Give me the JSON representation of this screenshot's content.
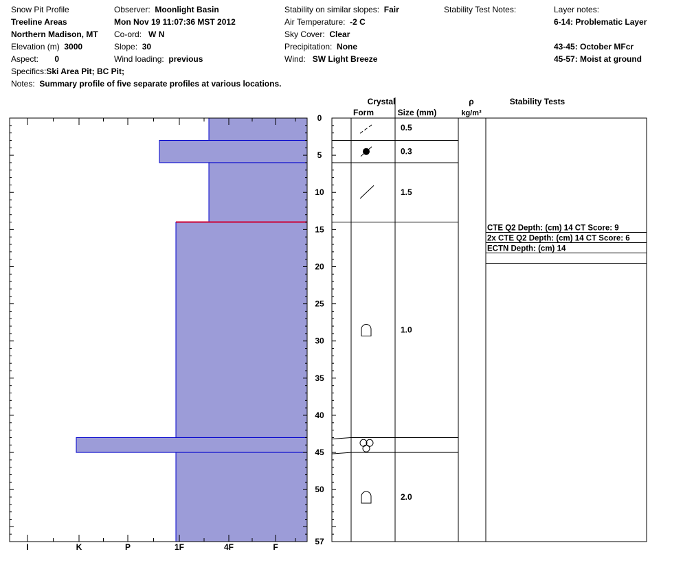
{
  "header": {
    "profile_title": "Snow Pit Profile",
    "location_name": "Treeline Areas",
    "region": "Northern Madison, MT",
    "elevation_label": "Elevation (m)",
    "elevation_value": "3000",
    "aspect_label": "Aspect:",
    "aspect_value": "0",
    "specifics_label": "Specifics:",
    "specifics_value": "Ski Area Pit; BC Pit;",
    "notes_label": "Notes:",
    "notes_value": "Summary profile of five separate profiles at various locations.",
    "observer_label": "Observer:",
    "observer_value": "Moonlight Basin",
    "datetime": "Mon Nov 19 11:07:36 MST 2012",
    "coord_label": "Co-ord:",
    "coord_value": "W  N",
    "slope_label": "Slope:",
    "slope_value": "30",
    "wind_loading_label": "Wind loading:",
    "wind_loading_value": "previous",
    "stability_label": "Stability on similar slopes:",
    "stability_value": "Fair",
    "air_temp_label": "Air Temperature:",
    "air_temp_value": "-2 C",
    "sky_label": "Sky Cover:",
    "sky_value": "Clear",
    "precip_label": "Precipitation:",
    "precip_value": "None",
    "wind_label": "Wind:",
    "wind_value": "SW Light Breeze",
    "stability_notes_label": "Stability Test Notes:",
    "layer_notes_label": "Layer notes:",
    "layer_notes": [
      "6-14: Problematic Layer",
      "43-45: October MFcr",
      "45-57: Moist at ground"
    ]
  },
  "columns": {
    "crystal": "Crystal",
    "form": "Form",
    "size": "Size (mm)",
    "rho": "ρ",
    "density_unit": "kg/m³",
    "stability_tests": "Stability Tests"
  },
  "stability_tests": [
    "CTE Q2 Depth: (cm) 14 CT Score: 9",
    "2x CTE Q2 Depth: (cm) 14 CT Score: 6",
    "ECTN  Depth: (cm) 14"
  ],
  "colors": {
    "hardness_fill": "#9c9cd8",
    "layer_outline": "#0000cc",
    "critical_line": "#cc0033"
  },
  "chart_data": {
    "type": "bar",
    "orientation": "horizontal",
    "x_categories": [
      "I",
      "K",
      "P",
      "1F",
      "4F",
      "F"
    ],
    "y_ticks": [
      0,
      5,
      10,
      15,
      20,
      25,
      30,
      35,
      40,
      45,
      50,
      57
    ],
    "ylim": [
      0,
      57
    ],
    "hardness_layers": [
      {
        "top": 0,
        "bottom": 3,
        "hardness": "4F"
      },
      {
        "top": 3,
        "bottom": 6,
        "hardness": "1F+"
      },
      {
        "top": 6,
        "bottom": 14,
        "hardness": "4F"
      },
      {
        "top": 14,
        "bottom": 43,
        "hardness": "1F"
      },
      {
        "top": 43,
        "bottom": 45,
        "hardness": "K-"
      },
      {
        "top": 45,
        "bottom": 57,
        "hardness": "1F"
      }
    ],
    "crystal_layers": [
      {
        "top": 0,
        "bottom": 3,
        "form": "decomposing",
        "size": "0.5"
      },
      {
        "top": 3,
        "bottom": 6,
        "form": "graupel",
        "size": "0.3"
      },
      {
        "top": 6,
        "bottom": 14,
        "form": "decomposing",
        "size": "1.5"
      },
      {
        "top": 14,
        "bottom": 43,
        "form": "depth-hoar",
        "size": "1.0"
      },
      {
        "top": 43,
        "bottom": 45,
        "form": "melt-freeze",
        "size": ""
      },
      {
        "top": 45,
        "bottom": 57,
        "form": "depth-hoar",
        "size": "2.0"
      }
    ],
    "stability_test_depth": 14
  }
}
